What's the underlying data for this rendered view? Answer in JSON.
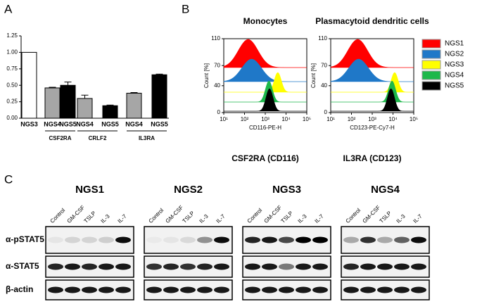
{
  "chart_data": [
    {
      "type": "bar",
      "panel": "A",
      "categories": [
        "NGS3",
        "NGS4",
        "NGS5",
        "NGS4",
        "NGS5",
        "NGS4",
        "NGS5"
      ],
      "group_labels": [
        "CSF2RA",
        "CRLF2",
        "IL3RA"
      ],
      "values": [
        1.0,
        0.46,
        0.5,
        0.3,
        0.19,
        0.38,
        0.66
      ],
      "errors": [
        0,
        0.01,
        0.05,
        0.05,
        0.01,
        0.01,
        0.01
      ],
      "colors": [
        "#ffffff",
        "#a6a6a6",
        "#000000",
        "#a6a6a6",
        "#000000",
        "#a6a6a6",
        "#000000"
      ],
      "ylim": [
        0,
        1.25
      ],
      "yticks": [
        {
          "value": 0,
          "label": "0.00"
        },
        {
          "value": 0.25,
          "label": "0.25"
        },
        {
          "value": 0.5,
          "label": "0.50"
        },
        {
          "value": 0.75,
          "label": "0.75"
        },
        {
          "value": 1.0,
          "label": "1.00"
        },
        {
          "value": 1.25,
          "label": "1.25"
        }
      ]
    },
    {
      "type": "histogram-overlay",
      "panel": "B",
      "title": "Monocytes",
      "ylabel": "Count [%]",
      "xlabel": "CD116-PE-H",
      "caption": "CSF2RA (CD116)",
      "log_x": true,
      "xlim": [
        10,
        100000
      ],
      "xticks": [
        {
          "value": 10,
          "label": "10¹"
        },
        {
          "value": 100,
          "label": "10²"
        },
        {
          "value": 1000,
          "label": "10³"
        },
        {
          "value": 10000,
          "label": "10⁴"
        },
        {
          "value": 100000,
          "label": "10⁵"
        }
      ],
      "ylim": [
        0,
        110
      ],
      "yticks": [
        0,
        40,
        70,
        110
      ],
      "series": [
        {
          "name": "NGS1",
          "color": "#ff0000",
          "peak": 150
        },
        {
          "name": "NGS2",
          "color": "#1f78c8",
          "peak": 220
        },
        {
          "name": "NGS3",
          "color": "#ffff00",
          "peak": 4000
        },
        {
          "name": "NGS4",
          "color": "#1db84a",
          "peak": 1500
        },
        {
          "name": "NGS5",
          "color": "#000000",
          "peak": 1600
        }
      ]
    },
    {
      "type": "histogram-overlay",
      "title": "Plasmacytoid dendritic cells",
      "ylabel": "Count [%]",
      "xlabel": "CD123-PE-Cy7-H",
      "caption": "IL3RA (CD123)",
      "log_x": true,
      "xlim": [
        10,
        100000
      ],
      "xticks": [
        {
          "value": 10,
          "label": "10¹"
        },
        {
          "value": 100,
          "label": "10²"
        },
        {
          "value": 1000,
          "label": "10³"
        },
        {
          "value": 10000,
          "label": "10⁴"
        },
        {
          "value": 100000,
          "label": "10⁵"
        }
      ],
      "ylim": [
        0,
        110
      ],
      "yticks": [
        0,
        40,
        70,
        110
      ],
      "series": [
        {
          "name": "NGS1",
          "color": "#ff0000",
          "peak": 200
        },
        {
          "name": "NGS2",
          "color": "#1f78c8",
          "peak": 220
        },
        {
          "name": "NGS3",
          "color": "#ffff00",
          "peak": 12000
        },
        {
          "name": "NGS4",
          "color": "#1db84a",
          "peak": 9000
        },
        {
          "name": "NGS5",
          "color": "#000000",
          "peak": 8000
        }
      ]
    }
  ],
  "blots": {
    "panel": "C",
    "lanes": [
      "Control",
      "GM-CSF",
      "TSLP",
      "IL-3",
      "IL-7"
    ],
    "rows": [
      "α-pSTAT5",
      "α-STAT5",
      "β-actin"
    ],
    "samples": [
      {
        "name": "NGS1",
        "bands": [
          [
            0.05,
            0.12,
            0.12,
            0.15,
            0.95
          ],
          [
            0.85,
            0.9,
            0.85,
            0.9,
            0.9
          ],
          [
            0.9,
            0.9,
            0.9,
            0.9,
            0.9
          ]
        ]
      },
      {
        "name": "NGS2",
        "bands": [
          [
            0.03,
            0.05,
            0.1,
            0.4,
            0.95
          ],
          [
            0.8,
            0.85,
            0.8,
            0.85,
            0.9
          ],
          [
            0.9,
            0.9,
            0.9,
            0.9,
            0.9
          ]
        ]
      },
      {
        "name": "NGS3",
        "bands": [
          [
            0.85,
            0.9,
            0.7,
            1.0,
            1.0
          ],
          [
            0.9,
            0.9,
            0.5,
            0.9,
            0.9
          ],
          [
            0.9,
            0.9,
            0.9,
            0.9,
            0.9
          ]
        ]
      },
      {
        "name": "NGS4",
        "bands": [
          [
            0.3,
            0.8,
            0.3,
            0.6,
            0.95
          ],
          [
            0.85,
            0.9,
            0.9,
            0.9,
            0.9
          ],
          [
            0.9,
            0.9,
            0.9,
            0.9,
            0.9
          ]
        ]
      }
    ]
  }
}
